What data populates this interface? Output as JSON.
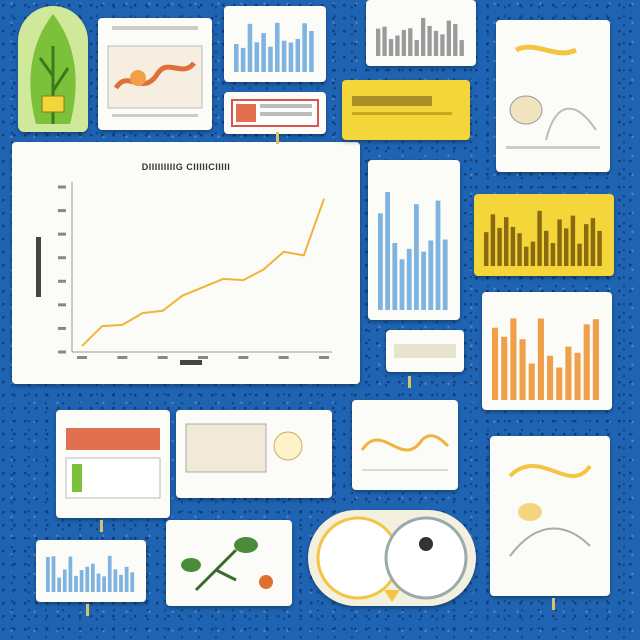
{
  "main_chart": {
    "title": "DIIIIIIIIIG CIIIIICIIIII",
    "ylabel": "",
    "xlabel": ""
  },
  "chart_data": {
    "type": "line",
    "title": "",
    "x": [
      1,
      2,
      3,
      4,
      5,
      6,
      7,
      8,
      9,
      10,
      11,
      12,
      13
    ],
    "series": [
      {
        "values": [
          0.5,
          2.2,
          2.3,
          3.3,
          3.5,
          4.8,
          5.5,
          6.2,
          6.1,
          7.0,
          8.5,
          8.2,
          13.0
        ]
      }
    ],
    "ylim": [
      0,
      14
    ],
    "grid": false,
    "line_color": "#f0b43c"
  },
  "colors": {
    "board": "#1f64b3",
    "accent_yellow": "#f4d63a",
    "bar_blue": "#7fb3e0",
    "bar_orange": "#f0a04a",
    "bar_red": "#d9534f",
    "leaf_green": "#7cc13a"
  },
  "icons": [
    "leaf-icon",
    "plant-icon",
    "owl-icon"
  ]
}
